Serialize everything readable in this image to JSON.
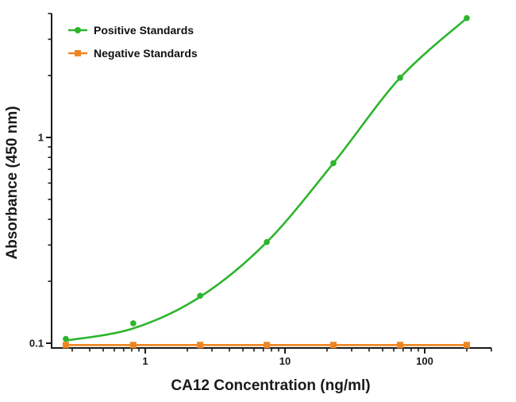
{
  "figure": {
    "background": "#ffffff",
    "axis_color": "#1a1a1a"
  },
  "chart_data": {
    "type": "line",
    "title": "",
    "xlabel": "CA12 Concentration (ng/ml)",
    "ylabel": "Absorbance (450 nm)",
    "x_scale": "log",
    "y_scale": "log",
    "x_range": [
      0.21,
      300
    ],
    "y_range": [
      0.095,
      4
    ],
    "grid": false,
    "legend_position": "top-left-inside",
    "x_ticks": {
      "major": [
        {
          "value": 1,
          "label": "1"
        },
        {
          "value": 10,
          "label": "10"
        },
        {
          "value": 100,
          "label": "100"
        }
      ],
      "minor": [
        0.3,
        0.4,
        0.5,
        0.6,
        0.7,
        0.8,
        0.9,
        2,
        3,
        4,
        5,
        6,
        7,
        8,
        9,
        20,
        30,
        40,
        50,
        60,
        70,
        80,
        90,
        200,
        300
      ]
    },
    "y_ticks": {
      "major": [
        {
          "value": 0.1,
          "label": "0.1"
        },
        {
          "value": 1,
          "label": "1"
        }
      ],
      "minor": [
        0.2,
        0.3,
        0.4,
        0.5,
        0.6,
        0.7,
        0.8,
        0.9,
        2,
        3,
        4
      ]
    },
    "x": [
      0.27,
      0.82,
      2.47,
      7.41,
      22.2,
      66.7,
      200
    ],
    "series": [
      {
        "name": "Positive Standards",
        "color": "#2cb52c",
        "marker": "circle",
        "values": [
          0.105,
          0.125,
          0.17,
          0.31,
          0.75,
          1.95,
          3.8
        ],
        "curve_values": [
          0.103,
          0.118,
          0.168,
          0.31,
          0.75,
          1.95,
          3.8
        ]
      },
      {
        "name": "Negative Standards",
        "color": "#ef8522",
        "marker": "square",
        "values": [
          0.098,
          0.098,
          0.098,
          0.098,
          0.098,
          0.098,
          0.098
        ]
      }
    ]
  }
}
